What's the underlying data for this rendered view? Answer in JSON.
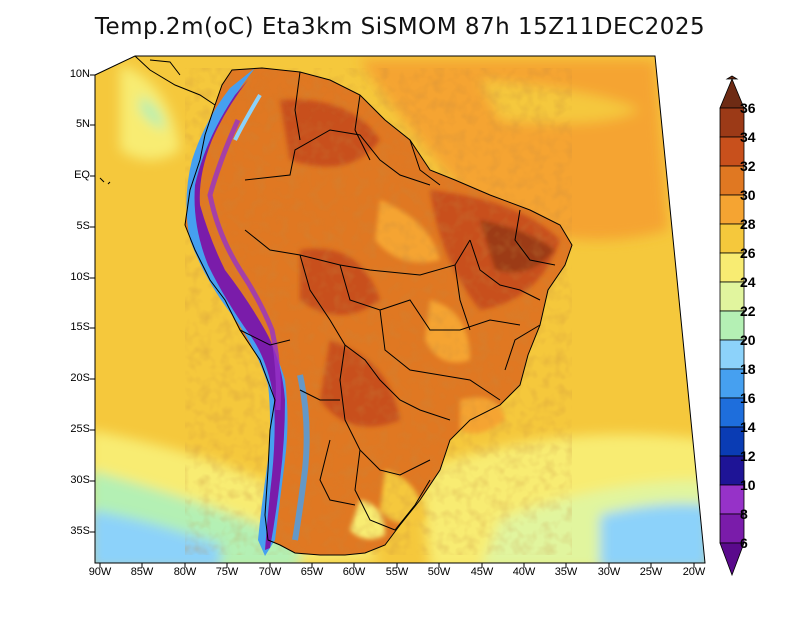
{
  "title": "Temp.2m(oC) Eta3km SiSMOM 87h 15Z11DEC2025",
  "x_axis": {
    "labels": [
      "90W",
      "85W",
      "80W",
      "75W",
      "70W",
      "65W",
      "60W",
      "55W",
      "50W",
      "45W",
      "40W",
      "35W",
      "30W",
      "25W",
      "20W"
    ]
  },
  "y_axis": {
    "labels": [
      "10N",
      "5N",
      "EQ",
      "5S",
      "10S",
      "15S",
      "20S",
      "25S",
      "30S",
      "35S"
    ]
  },
  "colorbar": {
    "labels": [
      "36",
      "34",
      "32",
      "30",
      "28",
      "26",
      "24",
      "22",
      "20",
      "18",
      "16",
      "14",
      "12",
      "10",
      "8",
      "6"
    ],
    "colors": [
      "#6e2b14",
      "#9c3a17",
      "#c8501c",
      "#e07822",
      "#f5a432",
      "#f5c83c",
      "#f8ec72",
      "#e1f59e",
      "#b4f0b4",
      "#8cd2fa",
      "#46a0f0",
      "#1e6edc",
      "#0a3cb4",
      "#1e1496",
      "#9632c8",
      "#7a1caa",
      "#5a0a8c"
    ]
  }
}
